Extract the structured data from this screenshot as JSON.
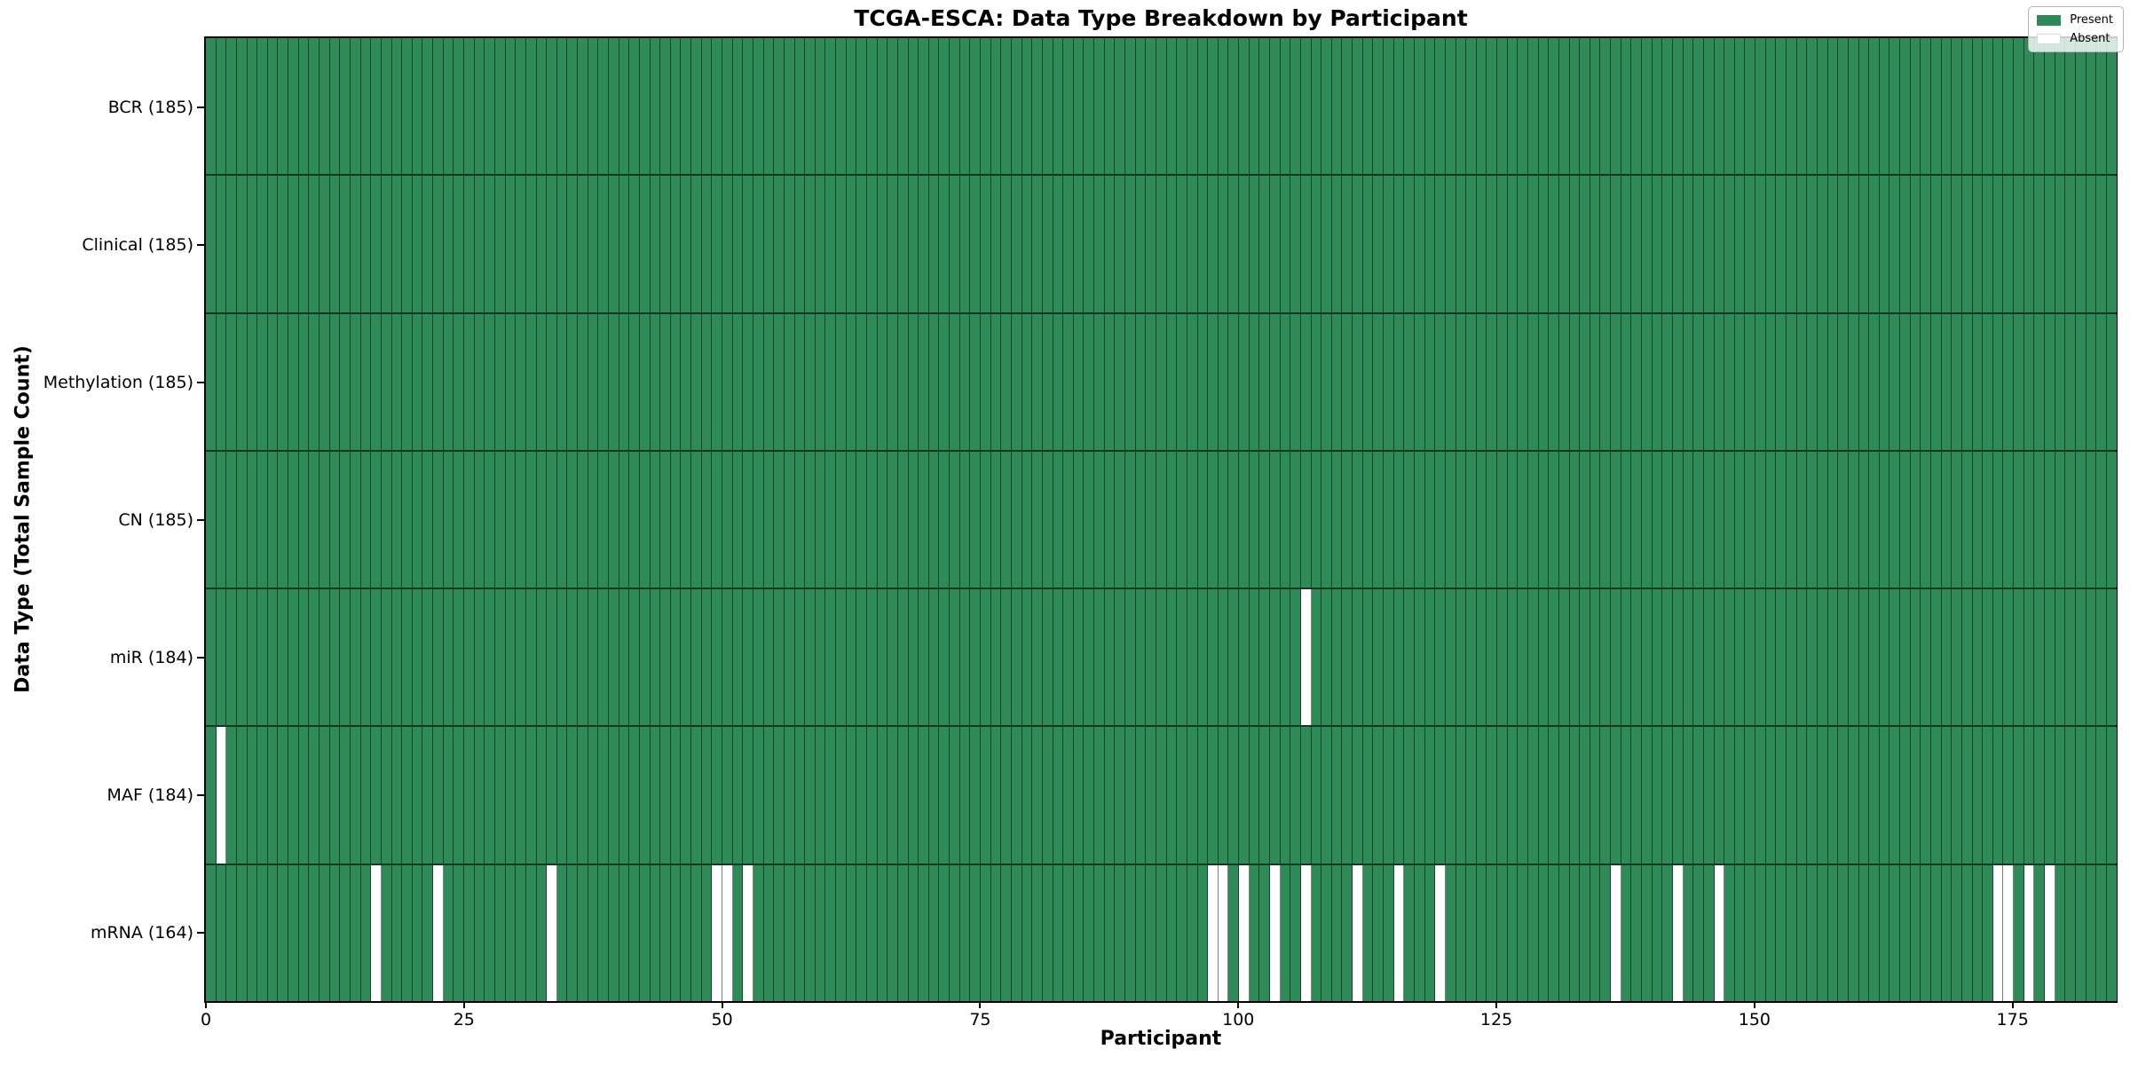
{
  "chart_data": {
    "type": "heatmap",
    "title": "TCGA-ESCA: Data Type Breakdown by Participant",
    "xlabel": "Participant",
    "ylabel": "Data Type (Total Sample Count)",
    "n_participants": 185,
    "xlim": [
      0,
      185
    ],
    "x_ticks": [
      0,
      25,
      50,
      75,
      100,
      125,
      150,
      175
    ],
    "grid": "cell-edges",
    "colors": {
      "present": "#2e8b57",
      "absent": "#ffffff",
      "cell_edge": "rgba(0,0,0,0.50)",
      "row_edge": "rgba(0,0,0,0.60)"
    },
    "legend": {
      "position": "upper right",
      "entries": [
        {
          "label": "Present",
          "color": "#2e8b57"
        },
        {
          "label": "Absent",
          "color": "#ffffff"
        }
      ]
    },
    "rows": [
      {
        "label": "BCR (185)",
        "data_type": "BCR",
        "total": 185,
        "absent_participants": []
      },
      {
        "label": "Clinical (185)",
        "data_type": "Clinical",
        "total": 185,
        "absent_participants": []
      },
      {
        "label": "Methylation (185)",
        "data_type": "Methylation",
        "total": 185,
        "absent_participants": []
      },
      {
        "label": "CN (185)",
        "data_type": "CN",
        "total": 185,
        "absent_participants": []
      },
      {
        "label": "miR (184)",
        "data_type": "miR",
        "total": 184,
        "absent_participants": [
          106
        ]
      },
      {
        "label": "MAF (184)",
        "data_type": "MAF",
        "total": 184,
        "absent_participants": [
          1
        ]
      },
      {
        "label": "mRNA (164)",
        "data_type": "mRNA",
        "total": 164,
        "absent_participants": [
          16,
          22,
          33,
          49,
          50,
          52,
          97,
          98,
          100,
          103,
          106,
          111,
          115,
          119,
          136,
          142,
          146,
          173,
          174,
          176,
          178
        ]
      }
    ]
  }
}
